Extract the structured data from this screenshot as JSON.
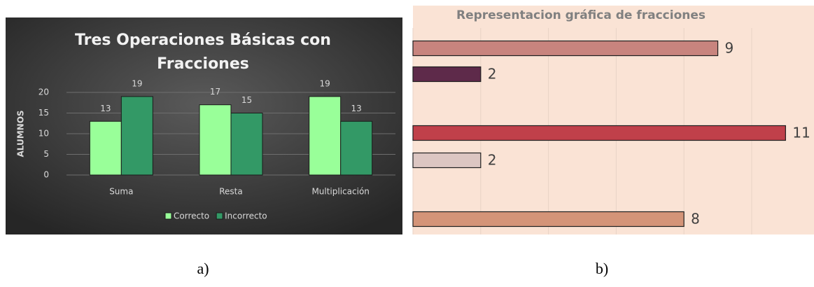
{
  "chart_data": [
    {
      "type": "bar",
      "title": [
        "Tres Operaciones Básicas con",
        "Fracciones"
      ],
      "ylabel": "ALUMNOS",
      "categories": [
        "Suma",
        "Resta",
        "Multiplicación"
      ],
      "series": [
        {
          "name": "Correcto",
          "color": "#99ff99",
          "values": [
            13,
            17,
            19
          ]
        },
        {
          "name": "Incorrecto",
          "color": "#339966",
          "values": [
            19,
            15,
            13
          ]
        }
      ],
      "ylim": [
        0,
        20
      ],
      "yticks": [
        0,
        5,
        10,
        15,
        20
      ],
      "grid": true,
      "legend": "bottom",
      "caption": "a)"
    },
    {
      "type": "hbar",
      "title": "Representacion gráfica de fracciones",
      "categories": [
        null,
        null,
        null,
        null,
        null
      ],
      "values": [
        9,
        2,
        11,
        2,
        8
      ],
      "colors": [
        "#c8847e",
        "#5e2a4a",
        "#c0404a",
        "#dcc6c2",
        "#d49478"
      ],
      "xlim": [
        0,
        11.84
      ],
      "xticks": [
        0,
        2,
        4,
        6,
        8,
        10
      ],
      "grid": true,
      "caption": "b)"
    }
  ]
}
